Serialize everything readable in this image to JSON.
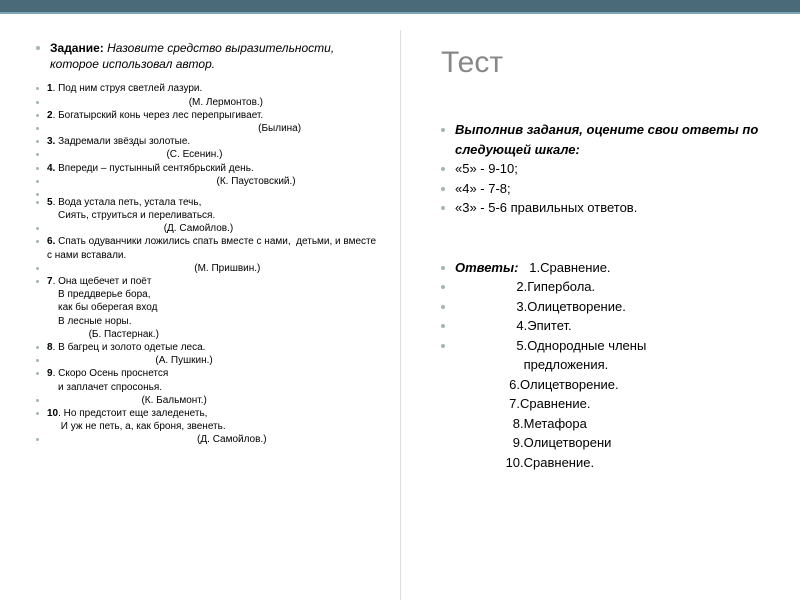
{
  "colors": {
    "topbar": "#4a6a7a",
    "topbar_border": "#7aa5b5",
    "divider": "#dddddd",
    "bullet": "#a5b5b5",
    "title": "#888888",
    "text": "#000000",
    "bg": "#ffffff"
  },
  "left": {
    "heading_label": "Задание: ",
    "heading_text": "Назовите средство выразительности, которое использовал автор.",
    "lines": [
      {
        "b": true,
        "t": "1"
      },
      {
        "p": ". Под ним струя светлей лазури."
      },
      {
        "b": false,
        "t": "                                                   (М. Лермонтов.)"
      },
      {
        "b": true,
        "t": "2"
      },
      {
        "p": ". Богатырский конь через лес перепрыгивает."
      },
      {
        "b": false,
        "t": "                                                                            (Былина)"
      },
      {
        "b": true,
        "t": "3."
      },
      {
        "p": " Задремали звёзды золотые."
      },
      {
        "b": false,
        "t": "                                           (С. Есенин.)"
      },
      {
        "b": true,
        "t": "4."
      },
      {
        "p": " Впереди – пустынный сентябрьский день."
      },
      {
        "b": false,
        "t": "                                                             (К. Паустовский.)"
      },
      {
        "b": false,
        "t": ""
      },
      {
        "b": true,
        "t": "5"
      },
      {
        "p": ". Вода устала петь, устала течь,"
      },
      {
        "i": true,
        "t": "Сиять, струиться и переливаться."
      },
      {
        "b": false,
        "t": "                                          (Д. Самойлов.)"
      },
      {
        "b": true,
        "t": "6."
      },
      {
        "p": " Спать одуванчики ложились спать вместе с нами,  детьми, и вместе с нами вставали."
      },
      {
        "b": false,
        "t": "                                                     (М. Пришвин.)"
      },
      {
        "b": true,
        "t": "7"
      },
      {
        "p": ". Она щебечет и поёт"
      },
      {
        "i": true,
        "t": "В преддверье бора,"
      },
      {
        "i": true,
        "t": "как бы оберегая вход"
      },
      {
        "i": true,
        "t": "В лесные норы."
      },
      {
        "i": true,
        "t": "           (Б. Пастернак.)"
      },
      {
        "b": true,
        "t": "8"
      },
      {
        "p": ". В багрец и золото одетые леса."
      },
      {
        "b": false,
        "t": "                                       (А. Пушкин.)"
      },
      {
        "b": true,
        "t": "9"
      },
      {
        "p": ". Скоро Осень проснется"
      },
      {
        "i": true,
        "t": "и заплачет спросонья."
      },
      {
        "b": false,
        "t": "                                  (К. Бальмонт.)"
      },
      {
        "b": true,
        "t": "10"
      },
      {
        "p": ". Но предстоит еще заледенеть,"
      },
      {
        "i": true,
        "t": " И уж не петь, а, как броня, звенеть."
      },
      {
        "b": false,
        "t": "                                                      (Д. Самойлов.)"
      }
    ]
  },
  "right": {
    "title": "Тест",
    "scale_heading": "Выполнив задания, оцените свои ответы по следующей шкале:",
    "scale": [
      "«5» - 9-10;",
      "«4» - 7-8;",
      "«3» - 5-6 правильных ответов."
    ],
    "answers_label": "Ответы:",
    "answers_first": "   1.Сравнение.",
    "answers_rest": [
      "                 2.Гипербола.",
      "                 3.Олицетворение.",
      "                 4.Эпитет.",
      "                 5.Однородные члены",
      "                   предложения.",
      "               6.Олицетворение.",
      "               7.Сравнение.",
      "                8.Метафора",
      "                9.Олицетворени",
      "              10.Сравнение."
    ]
  }
}
